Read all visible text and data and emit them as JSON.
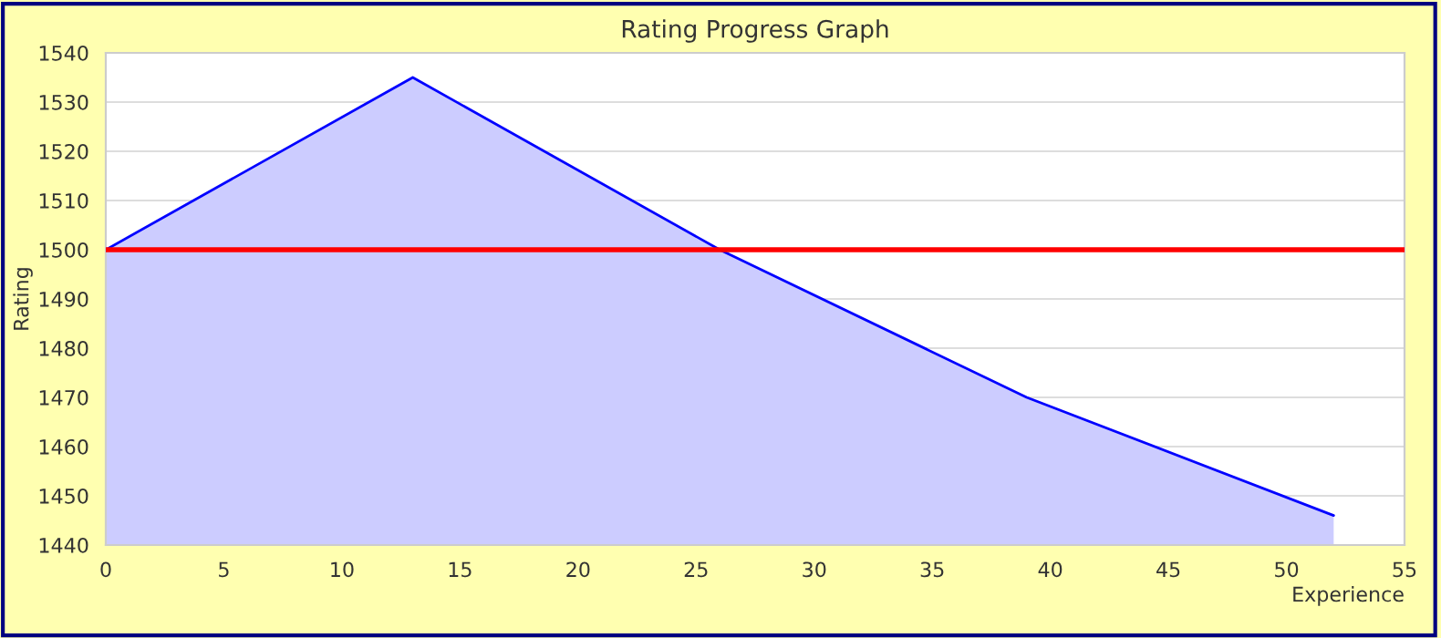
{
  "chart_data": {
    "type": "area",
    "title": "Rating Progress Graph",
    "xlabel": "Experience",
    "ylabel": "Rating",
    "x": [
      0,
      13,
      26,
      39,
      52
    ],
    "series": [
      {
        "color": "#0000ff",
        "values": [
          1500,
          1535,
          1500,
          1470,
          1446
        ]
      }
    ],
    "xlim": [
      0,
      55
    ],
    "xticks": [
      0,
      5,
      10,
      15,
      20,
      25,
      30,
      35,
      40,
      45,
      50,
      55
    ],
    "ylim": [
      1440,
      1540
    ],
    "yticks": [
      1440,
      1450,
      1460,
      1470,
      1480,
      1490,
      1500,
      1510,
      1520,
      1530,
      1540
    ],
    "ref_lines": [
      {
        "axis": "y",
        "value": 1500,
        "color": "#ff0000"
      }
    ],
    "grid": "y",
    "legend": false
  }
}
